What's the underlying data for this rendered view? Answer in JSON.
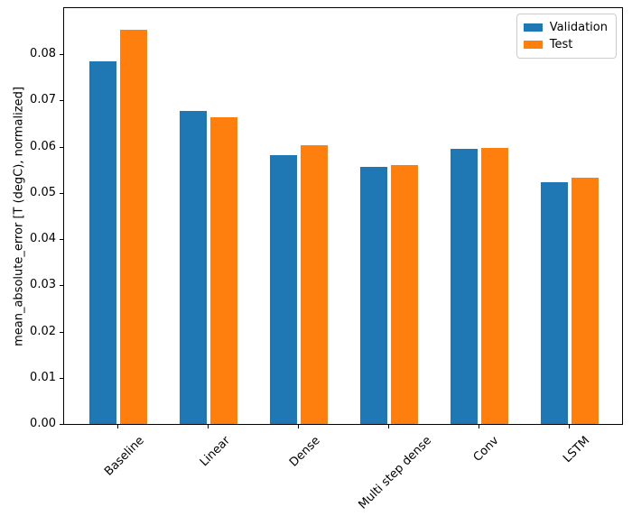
{
  "chart_data": {
    "type": "bar",
    "title": "",
    "xlabel": "",
    "ylabel": "mean_absolute_error [T (degC), normalized]",
    "categories": [
      "Baseline",
      "Linear",
      "Dense",
      "Multi step dense",
      "Conv",
      "LSTM"
    ],
    "series": [
      {
        "name": "Validation",
        "color": "#1f77b4",
        "values": [
          0.0785,
          0.0678,
          0.0582,
          0.0557,
          0.0596,
          0.0523
        ]
      },
      {
        "name": "Test",
        "color": "#ff7f0e",
        "values": [
          0.0853,
          0.0664,
          0.0603,
          0.0561,
          0.0598,
          0.0532
        ]
      }
    ],
    "ylim": [
      0,
      0.09
    ],
    "yticks": [
      0.0,
      0.01,
      0.02,
      0.03,
      0.04,
      0.05,
      0.06,
      0.07,
      0.08
    ],
    "ytick_labels": [
      "0.00",
      "0.01",
      "0.02",
      "0.03",
      "0.04",
      "0.05",
      "0.06",
      "0.07",
      "0.08"
    ],
    "x_tick_rotation_deg": 45,
    "grid": false,
    "legend_position": "upper right",
    "bar_width_units": 0.3,
    "bar_offset_units": 0.17
  }
}
